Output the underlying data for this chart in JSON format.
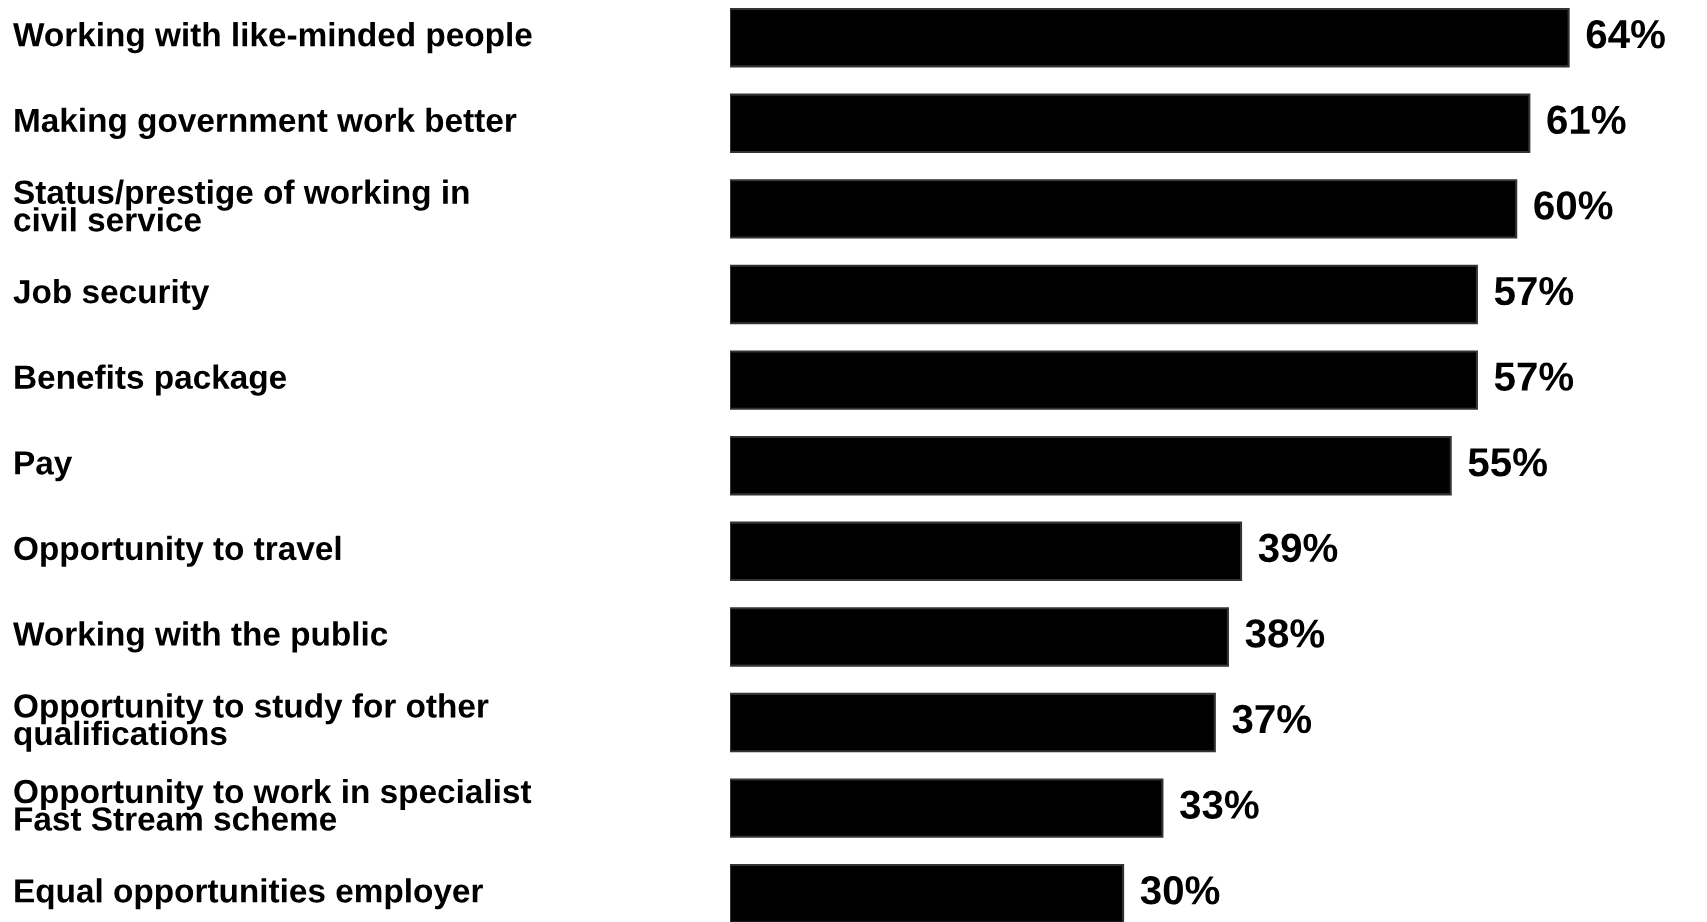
{
  "chart_data": {
    "type": "bar",
    "orientation": "horizontal",
    "data_labels": true,
    "color": "#000000",
    "categories": [
      "Working with like-minded people",
      "Making government work better",
      "Status/prestige of working in\ncivil service",
      "Job security",
      "Benefits package",
      "Pay",
      "Opportunity to travel",
      "Working with the public",
      "Opportunity to study for other\nqualifications",
      "Opportunity to work in specialist\nFast Stream scheme",
      "Equal opportunities employer"
    ],
    "values": [
      64,
      61,
      60,
      57,
      57,
      55,
      39,
      38,
      37,
      33,
      30
    ],
    "value_labels": [
      "64%",
      "61%",
      "60%",
      "57%",
      "57%",
      "55%",
      "39%",
      "38%",
      "37%",
      "33%",
      "30%"
    ]
  }
}
